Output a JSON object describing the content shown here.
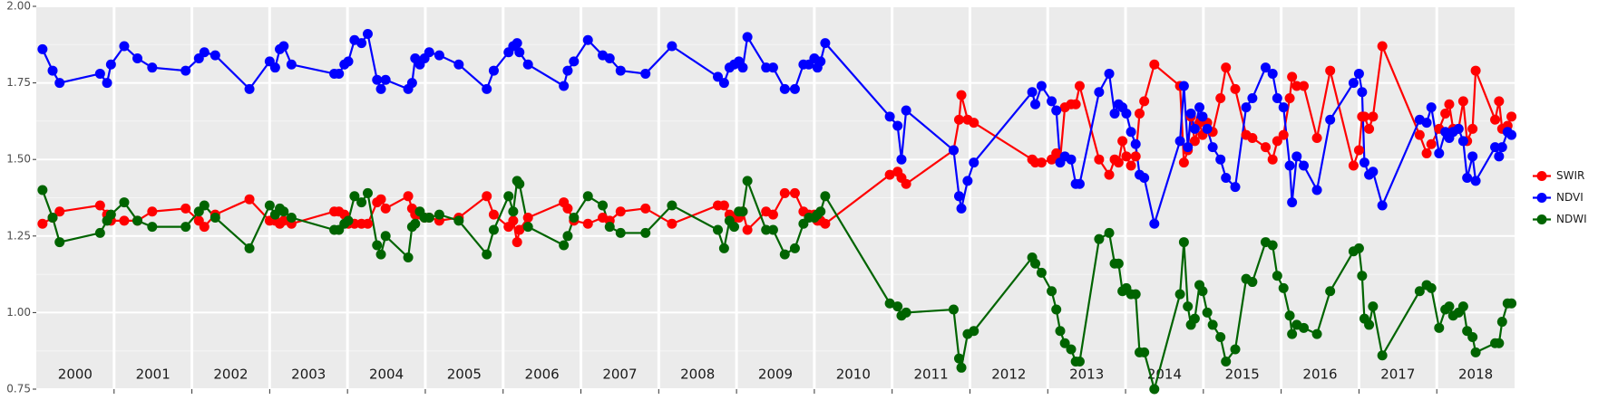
{
  "chart_data": {
    "type": "line",
    "x": [
      2000.08,
      2000.21,
      2000.3,
      2000.82,
      2000.91,
      2000.96,
      2001.13,
      2001.3,
      2001.49,
      2001.92,
      2002.09,
      2002.16,
      2002.3,
      2002.74,
      2003.0,
      2003.07,
      2003.13,
      2003.18,
      2003.28,
      2003.83,
      2003.89,
      2003.96,
      2004.01,
      2004.09,
      2004.18,
      2004.26,
      2004.38,
      2004.43,
      2004.49,
      2004.78,
      2004.83,
      2004.87,
      2004.93,
      2004.99,
      2005.05,
      2005.18,
      2005.43,
      2005.79,
      2005.88,
      2006.07,
      2006.13,
      2006.18,
      2006.21,
      2006.32,
      2006.78,
      2006.83,
      2006.91,
      2007.09,
      2007.28,
      2007.37,
      2007.51,
      2007.83,
      2008.17,
      2008.76,
      2008.84,
      2008.91,
      2008.97,
      2009.03,
      2009.08,
      2009.14,
      2009.38,
      2009.47,
      2009.62,
      2009.75,
      2009.86,
      2009.93,
      2010.0,
      2010.04,
      2010.08,
      2010.14,
      2010.97,
      2011.07,
      2011.12,
      2011.18,
      2011.79,
      2011.86,
      2011.89,
      2011.97,
      2012.05,
      2012.8,
      2012.84,
      2012.92,
      2013.05,
      2013.11,
      2013.16,
      2013.22,
      2013.3,
      2013.36,
      2013.41,
      2013.66,
      2013.79,
      2013.86,
      2013.91,
      2013.96,
      2014.01,
      2014.07,
      2014.13,
      2014.18,
      2014.24,
      2014.37,
      2014.7,
      2014.75,
      2014.8,
      2014.84,
      2014.89,
      2014.95,
      2014.99,
      2015.05,
      2015.12,
      2015.22,
      2015.29,
      2015.41,
      2015.55,
      2015.63,
      2015.8,
      2015.89,
      2015.95,
      2016.03,
      2016.11,
      2016.14,
      2016.2,
      2016.29,
      2016.46,
      2016.63,
      2016.93,
      2017.0,
      2017.04,
      2017.07,
      2017.13,
      2017.18,
      2017.3,
      2017.78,
      2017.87,
      2017.93,
      2018.03,
      2018.11,
      2018.16,
      2018.21,
      2018.28,
      2018.34,
      2018.39,
      2018.46,
      2018.5,
      2018.75,
      2018.8,
      2018.84,
      2018.91,
      2018.96
    ],
    "series": [
      {
        "name": "SWIR",
        "color": "#ff0000",
        "values": [
          1.29,
          1.31,
          1.33,
          1.35,
          1.32,
          1.3,
          1.3,
          1.3,
          1.33,
          1.34,
          1.3,
          1.28,
          1.32,
          1.37,
          1.3,
          1.3,
          1.29,
          1.3,
          1.29,
          1.33,
          1.33,
          1.32,
          1.29,
          1.29,
          1.29,
          1.29,
          1.36,
          1.37,
          1.34,
          1.38,
          1.34,
          1.32,
          1.32,
          1.31,
          1.31,
          1.3,
          1.31,
          1.38,
          1.32,
          1.28,
          1.3,
          1.23,
          1.27,
          1.31,
          1.36,
          1.34,
          1.3,
          1.29,
          1.31,
          1.3,
          1.33,
          1.34,
          1.29,
          1.35,
          1.35,
          1.32,
          1.31,
          1.31,
          1.33,
          1.27,
          1.33,
          1.32,
          1.39,
          1.39,
          1.33,
          1.32,
          1.32,
          1.3,
          1.3,
          1.29,
          1.45,
          1.46,
          1.44,
          1.42,
          1.53,
          1.63,
          1.71,
          1.63,
          1.62,
          1.5,
          1.49,
          1.49,
          1.5,
          1.52,
          1.5,
          1.67,
          1.68,
          1.68,
          1.74,
          1.5,
          1.45,
          1.5,
          1.49,
          1.56,
          1.51,
          1.48,
          1.51,
          1.65,
          1.69,
          1.81,
          1.74,
          1.49,
          1.53,
          1.64,
          1.56,
          1.62,
          1.58,
          1.62,
          1.59,
          1.7,
          1.8,
          1.73,
          1.58,
          1.57,
          1.54,
          1.5,
          1.56,
          1.58,
          1.7,
          1.77,
          1.74,
          1.74,
          1.57,
          1.79,
          1.48,
          1.53,
          1.64,
          1.64,
          1.6,
          1.64,
          1.87,
          1.58,
          1.52,
          1.55,
          1.6,
          1.65,
          1.68,
          1.6,
          1.6,
          1.69,
          1.56,
          1.6,
          1.79,
          1.63,
          1.69,
          1.6,
          1.61,
          1.64
        ]
      },
      {
        "name": "NDVI",
        "color": "#0000ff",
        "values": [
          1.86,
          1.79,
          1.75,
          1.78,
          1.75,
          1.81,
          1.87,
          1.83,
          1.8,
          1.79,
          1.83,
          1.85,
          1.84,
          1.73,
          1.82,
          1.8,
          1.86,
          1.87,
          1.81,
          1.78,
          1.78,
          1.81,
          1.82,
          1.89,
          1.88,
          1.91,
          1.76,
          1.73,
          1.76,
          1.73,
          1.75,
          1.83,
          1.81,
          1.83,
          1.85,
          1.84,
          1.81,
          1.73,
          1.79,
          1.85,
          1.87,
          1.88,
          1.85,
          1.81,
          1.74,
          1.79,
          1.82,
          1.89,
          1.84,
          1.83,
          1.79,
          1.78,
          1.87,
          1.77,
          1.75,
          1.8,
          1.81,
          1.82,
          1.8,
          1.9,
          1.8,
          1.8,
          1.73,
          1.73,
          1.81,
          1.81,
          1.83,
          1.8,
          1.82,
          1.88,
          1.64,
          1.61,
          1.5,
          1.66,
          1.53,
          1.38,
          1.34,
          1.43,
          1.49,
          1.72,
          1.68,
          1.74,
          1.69,
          1.66,
          1.49,
          1.51,
          1.5,
          1.42,
          1.42,
          1.72,
          1.78,
          1.65,
          1.68,
          1.67,
          1.65,
          1.59,
          1.55,
          1.45,
          1.44,
          1.29,
          1.56,
          1.74,
          1.54,
          1.65,
          1.6,
          1.67,
          1.64,
          1.6,
          1.54,
          1.5,
          1.44,
          1.41,
          1.67,
          1.7,
          1.8,
          1.78,
          1.7,
          1.67,
          1.48,
          1.36,
          1.51,
          1.48,
          1.4,
          1.63,
          1.75,
          1.78,
          1.72,
          1.49,
          1.45,
          1.46,
          1.35,
          1.63,
          1.62,
          1.67,
          1.52,
          1.59,
          1.57,
          1.59,
          1.6,
          1.56,
          1.44,
          1.51,
          1.43,
          1.54,
          1.51,
          1.54,
          1.59,
          1.58
        ]
      },
      {
        "name": "NDWI",
        "color": "#006400",
        "values": [
          1.4,
          1.31,
          1.23,
          1.26,
          1.3,
          1.32,
          1.36,
          1.3,
          1.28,
          1.28,
          1.33,
          1.35,
          1.31,
          1.21,
          1.35,
          1.32,
          1.34,
          1.33,
          1.31,
          1.27,
          1.27,
          1.29,
          1.3,
          1.38,
          1.36,
          1.39,
          1.22,
          1.19,
          1.25,
          1.18,
          1.28,
          1.29,
          1.33,
          1.31,
          1.31,
          1.32,
          1.3,
          1.19,
          1.27,
          1.38,
          1.33,
          1.43,
          1.42,
          1.28,
          1.22,
          1.25,
          1.31,
          1.38,
          1.35,
          1.28,
          1.26,
          1.26,
          1.35,
          1.27,
          1.21,
          1.3,
          1.28,
          1.33,
          1.33,
          1.43,
          1.27,
          1.27,
          1.19,
          1.21,
          1.29,
          1.31,
          1.31,
          1.32,
          1.33,
          1.38,
          1.03,
          1.02,
          0.99,
          1.0,
          1.01,
          0.85,
          0.82,
          0.93,
          0.94,
          1.18,
          1.16,
          1.13,
          1.07,
          1.01,
          0.94,
          0.9,
          0.88,
          0.84,
          0.84,
          1.24,
          1.26,
          1.16,
          1.16,
          1.07,
          1.08,
          1.06,
          1.06,
          0.87,
          0.87,
          0.75,
          1.06,
          1.23,
          1.02,
          0.96,
          0.98,
          1.09,
          1.07,
          1.0,
          0.96,
          0.92,
          0.84,
          0.88,
          1.11,
          1.1,
          1.23,
          1.22,
          1.12,
          1.08,
          0.99,
          0.93,
          0.96,
          0.95,
          0.93,
          1.07,
          1.2,
          1.21,
          1.12,
          0.98,
          0.96,
          1.02,
          0.86,
          1.07,
          1.09,
          1.08,
          0.95,
          1.01,
          1.02,
          0.99,
          1.0,
          1.02,
          0.94,
          0.92,
          0.87,
          0.9,
          0.9,
          0.97,
          1.03,
          1.03
        ]
      }
    ],
    "xlim": [
      2000,
      2019
    ],
    "xticks": [
      2001,
      2002,
      2003,
      2004,
      2005,
      2006,
      2007,
      2008,
      2009,
      2010,
      2011,
      2012,
      2013,
      2014,
      2015,
      2016,
      2017,
      2018
    ],
    "year_labels": [
      "2000",
      "2001",
      "2002",
      "2003",
      "2004",
      "2005",
      "2006",
      "2007",
      "2008",
      "2009",
      "2010",
      "2011",
      "2012",
      "2013",
      "2014",
      "2015",
      "2016",
      "2017",
      "2018"
    ],
    "ylim": [
      0.75,
      2.0
    ],
    "yticks": [
      {
        "value": 0.75,
        "label": "0.75"
      },
      {
        "value": 1,
        "label": "1.00"
      },
      {
        "value": 1.25,
        "label": "1.25"
      },
      {
        "value": 1.5,
        "label": "1.50"
      },
      {
        "value": 1.75,
        "label": "1.75"
      },
      {
        "value": 2,
        "label": "2.00"
      }
    ],
    "y_minor_grid": [
      0.875,
      1.125,
      1.375,
      1.625,
      1.875
    ],
    "grid": true,
    "legend": "right"
  }
}
